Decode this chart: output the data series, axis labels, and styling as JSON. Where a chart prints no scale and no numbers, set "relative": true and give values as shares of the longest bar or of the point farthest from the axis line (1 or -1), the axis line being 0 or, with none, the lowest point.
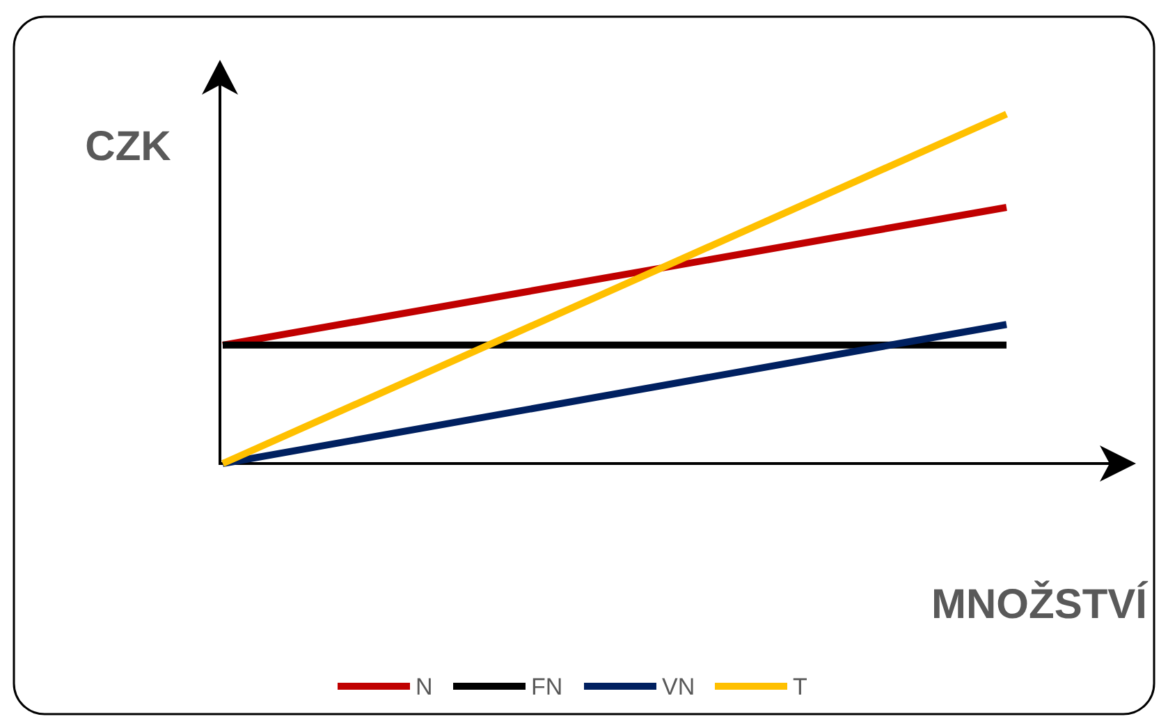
{
  "chart_data": {
    "type": "line",
    "xlabel": "MNOŽSTVÍ",
    "ylabel": "CZK",
    "relative": true,
    "categories": [
      null,
      null
    ],
    "legend": "bottom",
    "marker": "none",
    "line_style": "solid",
    "series": [
      {
        "name": "N",
        "color": "#c00000",
        "values": [
          0.339,
          0.733
        ]
      },
      {
        "name": "FN",
        "color": "#000000",
        "values": [
          0.339,
          0.339
        ]
      },
      {
        "name": "VN",
        "color": "#002060",
        "values": [
          0,
          0.398
        ]
      },
      {
        "name": "T",
        "color": "#ffc000",
        "values": [
          0,
          1
        ]
      }
    ]
  }
}
